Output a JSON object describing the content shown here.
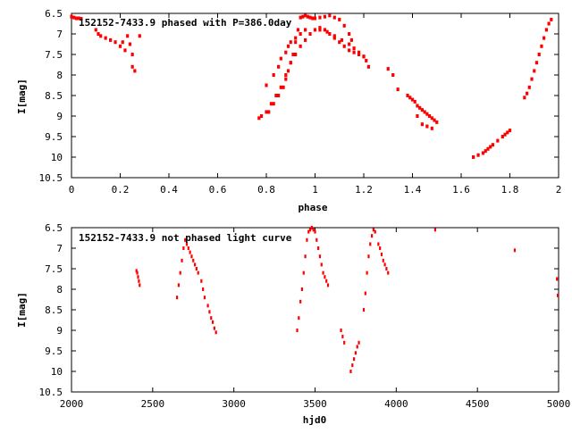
{
  "charts": [
    {
      "id": "top",
      "type": "scatter",
      "title": "152152-7433.9 phased with P=386.0day",
      "xlabel": "phase",
      "ylabel": "I[mag]",
      "xlim": [
        0,
        2
      ],
      "ylim": [
        10.5,
        6.5
      ],
      "y_inverted": true,
      "xticks": [
        0,
        0.2,
        0.4,
        0.6,
        0.8,
        1,
        1.2,
        1.4,
        1.6,
        1.8,
        2
      ],
      "xtick_labels": [
        "0",
        "0.2",
        "0.4",
        "0.6",
        "0.8",
        "1",
        "1.2",
        "1.4",
        "1.6",
        "1.8",
        "2"
      ],
      "yticks": [
        6.5,
        7,
        7.5,
        8,
        8.5,
        9,
        9.5,
        10,
        10.5
      ],
      "ytick_labels": [
        "6.5",
        "7",
        "7.5",
        "8",
        "8.5",
        "9",
        "9.5",
        "10",
        "10.5"
      ],
      "point_color": "#ff0000",
      "frame": "box, ticks inward",
      "grid": false
    },
    {
      "id": "bottom",
      "type": "scatter",
      "title": "152152-7433.9 not phased light curve",
      "xlabel": "hjd0",
      "ylabel": "I[mag]",
      "xlim": [
        2000,
        5000
      ],
      "ylim": [
        10.5,
        6.5
      ],
      "y_inverted": true,
      "xticks": [
        2000,
        2500,
        3000,
        3500,
        4000,
        4500,
        5000
      ],
      "xtick_labels": [
        "2000",
        "2500",
        "3000",
        "3500",
        "4000",
        "4500",
        "5000"
      ],
      "yticks": [
        6.5,
        7,
        7.5,
        8,
        8.5,
        9,
        9.5,
        10,
        10.5
      ],
      "ytick_labels": [
        "6.5",
        "7",
        "7.5",
        "8",
        "8.5",
        "9",
        "9.5",
        "10",
        "10.5"
      ],
      "point_color": "#ff0000",
      "frame": "box, ticks inward",
      "grid": false
    }
  ],
  "chart_data": [
    {
      "type": "scatter",
      "title": "152152-7433.9 phased with P=386.0day",
      "xlabel": "phase",
      "ylabel": "I[mag]",
      "xlim": [
        0,
        2
      ],
      "ylim": [
        10.5,
        6.5
      ],
      "series": [
        {
          "x": [
            0.0,
            0.01,
            0.02,
            0.03,
            0.04,
            0.1,
            0.11,
            0.12,
            0.14,
            0.16,
            0.18,
            0.2,
            0.21,
            0.22,
            0.23,
            0.24,
            0.25,
            0.25,
            0.26,
            0.28,
            0.77,
            0.78,
            0.8,
            0.82,
            0.84,
            0.86,
            0.88,
            0.9,
            0.91,
            0.92,
            0.93,
            0.94,
            0.95,
            0.96,
            0.97,
            0.98,
            0.99,
            1.0,
            1.02,
            1.04,
            1.06,
            1.08,
            1.1,
            1.12,
            1.14,
            1.15,
            0.81,
            0.83,
            0.85,
            0.87,
            0.88,
            0.89,
            0.9,
            0.92,
            0.94,
            0.96,
            0.98,
            1.0,
            1.02,
            1.04,
            1.06,
            1.08,
            1.1,
            1.12,
            1.14,
            1.16,
            1.18,
            1.2,
            1.21,
            1.22,
            0.8,
            0.83,
            0.85,
            0.86,
            0.88,
            0.89,
            0.9,
            0.92,
            0.94,
            0.96,
            1.02,
            1.05,
            1.08,
            1.11,
            1.14,
            1.16,
            1.18,
            1.2,
            1.3,
            1.32,
            1.34,
            1.38,
            1.39,
            1.4,
            1.41,
            1.42,
            1.43,
            1.44,
            1.45,
            1.46,
            1.47,
            1.48,
            1.49,
            1.5,
            1.42,
            1.44,
            1.46,
            1.48,
            1.65,
            1.67,
            1.69,
            1.7,
            1.71,
            1.72,
            1.73,
            1.75,
            1.77,
            1.78,
            1.79,
            1.8,
            1.86,
            1.87,
            1.88,
            1.89,
            1.9,
            1.91,
            1.92,
            1.93,
            1.94,
            1.95,
            1.96,
            1.97
          ],
          "y": [
            6.58,
            6.6,
            6.62,
            6.62,
            6.63,
            6.9,
            7.0,
            7.05,
            7.1,
            7.15,
            7.2,
            7.3,
            7.2,
            7.4,
            7.05,
            7.25,
            7.5,
            7.8,
            7.9,
            7.05,
            9.05,
            9.0,
            8.9,
            8.7,
            8.5,
            8.3,
            8.0,
            7.7,
            7.5,
            7.2,
            6.9,
            6.6,
            6.58,
            6.55,
            6.58,
            6.6,
            6.62,
            6.62,
            6.6,
            6.58,
            6.55,
            6.6,
            6.65,
            6.8,
            7.0,
            7.15,
            8.9,
            8.7,
            8.5,
            8.3,
            8.1,
            7.9,
            7.7,
            7.5,
            7.3,
            7.15,
            7.0,
            6.9,
            6.85,
            6.9,
            7.0,
            7.1,
            7.2,
            7.3,
            7.4,
            7.45,
            7.5,
            7.55,
            7.65,
            7.8,
            8.25,
            8.0,
            7.8,
            7.6,
            7.45,
            7.3,
            7.2,
            7.1,
            7.0,
            6.9,
            6.9,
            6.95,
            7.05,
            7.15,
            7.25,
            7.35,
            7.45,
            7.55,
            7.85,
            8.0,
            8.35,
            8.5,
            8.55,
            8.6,
            8.65,
            8.75,
            8.8,
            8.85,
            8.9,
            8.95,
            9.0,
            9.05,
            9.1,
            9.15,
            9.0,
            9.2,
            9.25,
            9.3,
            10.0,
            9.95,
            9.9,
            9.85,
            9.8,
            9.75,
            9.7,
            9.6,
            9.5,
            9.45,
            9.4,
            9.35,
            8.55,
            8.45,
            8.3,
            8.1,
            7.9,
            7.7,
            7.5,
            7.3,
            7.1,
            6.9,
            6.75,
            6.65
          ]
        }
      ]
    },
    {
      "type": "scatter",
      "title": "152152-7433.9 not phased light curve",
      "xlabel": "hjd0",
      "ylabel": "I[mag]",
      "xlim": [
        2000,
        5000
      ],
      "ylim": [
        10.5,
        6.5
      ],
      "series": [
        {
          "x": [
            2400,
            2405,
            2410,
            2415,
            2420,
            2650,
            2660,
            2670,
            2680,
            2690,
            2700,
            2710,
            2720,
            2730,
            2740,
            2750,
            2760,
            2770,
            2780,
            2800,
            2810,
            2820,
            2840,
            2850,
            2860,
            2870,
            2880,
            2890,
            3390,
            3400,
            3410,
            3420,
            3430,
            3440,
            3450,
            3460,
            3470,
            3480,
            3490,
            3500,
            3510,
            3520,
            3530,
            3540,
            3550,
            3560,
            3570,
            3580,
            3660,
            3670,
            3680,
            3720,
            3730,
            3740,
            3750,
            3760,
            3770,
            3800,
            3810,
            3820,
            3830,
            3840,
            3850,
            3860,
            3870,
            3890,
            3900,
            3910,
            3920,
            3930,
            3940,
            3950,
            4240,
            4730,
            4990,
            4995
          ],
          "y": [
            7.55,
            7.6,
            7.7,
            7.8,
            7.9,
            8.2,
            7.9,
            7.6,
            7.3,
            7.0,
            6.8,
            6.9,
            7.0,
            7.1,
            7.2,
            7.3,
            7.4,
            7.5,
            7.6,
            7.8,
            8.0,
            8.2,
            8.4,
            8.55,
            8.7,
            8.8,
            8.95,
            9.05,
            9.0,
            8.7,
            8.3,
            8.0,
            7.6,
            7.2,
            6.8,
            6.6,
            6.55,
            6.5,
            6.55,
            6.6,
            6.8,
            7.0,
            7.2,
            7.4,
            7.6,
            7.7,
            7.8,
            7.9,
            9.0,
            9.15,
            9.3,
            10.0,
            9.85,
            9.7,
            9.55,
            9.4,
            9.3,
            8.5,
            8.1,
            7.6,
            7.2,
            6.9,
            6.7,
            6.55,
            6.6,
            6.9,
            7.0,
            7.15,
            7.3,
            7.4,
            7.5,
            7.6,
            6.55,
            7.05,
            7.75,
            8.15
          ]
        }
      ]
    }
  ]
}
